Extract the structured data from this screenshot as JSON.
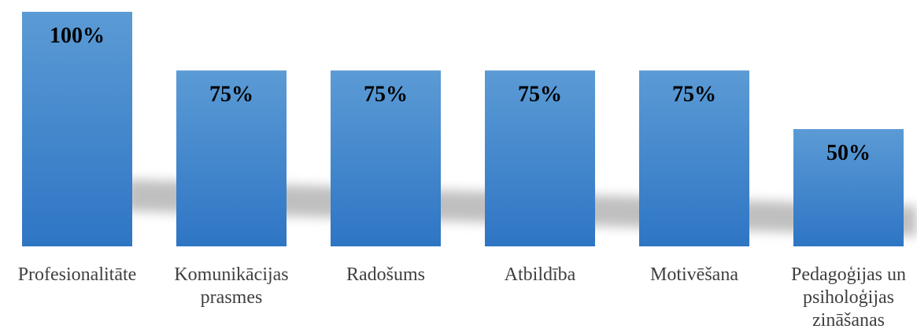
{
  "chart_data": {
    "type": "bar",
    "title": "",
    "xlabel": "",
    "ylabel": "",
    "categories": [
      "Profesionalitāte",
      "Komunikācijas prasmes",
      "Radošums",
      "Atbildība",
      "Motivēšana",
      "Pedagoģijas un psiholoģijas zināšanas"
    ],
    "category_lines": [
      [
        "Profesionalitāte"
      ],
      [
        "Komunikācijas",
        "prasmes"
      ],
      [
        "Radošums"
      ],
      [
        "Atbildība"
      ],
      [
        "Motivēšana"
      ],
      [
        "Pedagoģijas un",
        "psiholoģijas",
        "zināšanas"
      ]
    ],
    "values": [
      100,
      75,
      75,
      75,
      75,
      50
    ],
    "value_labels": [
      "100%",
      "75%",
      "75%",
      "75%",
      "75%",
      "50%"
    ],
    "ylim": [
      0,
      100
    ],
    "grid": false,
    "legend": "none",
    "colors": {
      "bar_top": "#5b9bd5",
      "bar_bottom": "#2e75c4",
      "shadow": "#8c8c8c",
      "label": "#404040"
    }
  }
}
